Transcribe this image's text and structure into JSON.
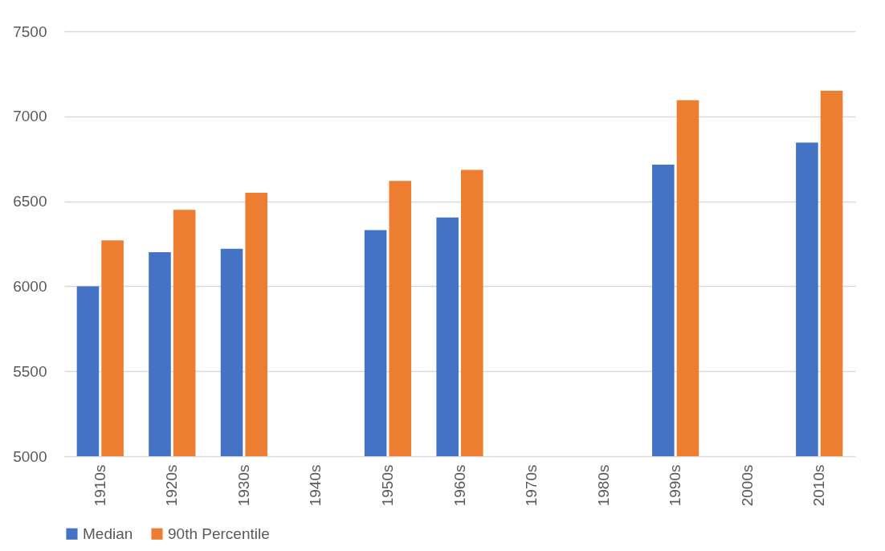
{
  "chart_data": {
    "type": "bar",
    "categories": [
      "1910s",
      "1920s",
      "1930s",
      "1940s",
      "1950s",
      "1960s",
      "1970s",
      "1980s",
      "1990s",
      "2000s",
      "2010s"
    ],
    "series": [
      {
        "name": "Median",
        "color": "#4472c4",
        "values": [
          6000,
          6200,
          6220,
          null,
          6330,
          6405,
          null,
          null,
          6715,
          null,
          6845
        ]
      },
      {
        "name": "90th Percentile",
        "color": "#ed7d31",
        "values": [
          6270,
          6450,
          6550,
          null,
          6620,
          6685,
          null,
          null,
          7095,
          null,
          7150
        ]
      }
    ],
    "ylim": [
      5000,
      7500
    ],
    "yticks": [
      5000,
      5500,
      6000,
      6500,
      7000,
      7500
    ],
    "grid": "y",
    "legend": "bottom"
  }
}
